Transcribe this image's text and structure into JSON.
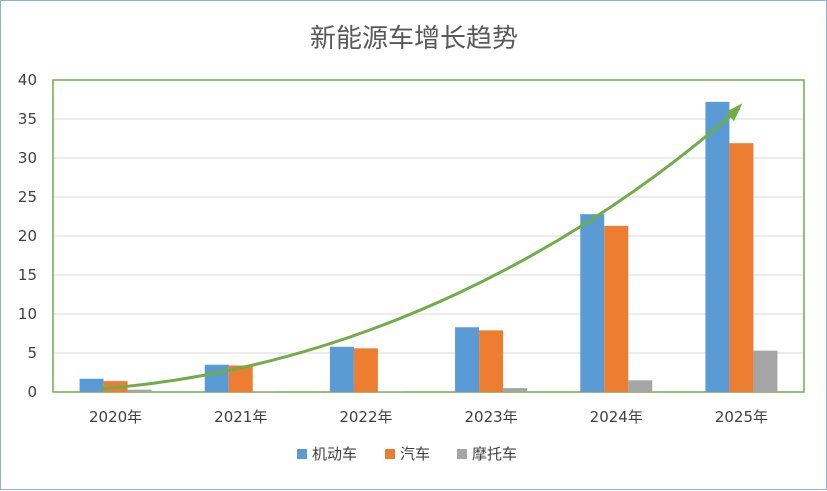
{
  "chart_data": {
    "type": "bar",
    "title": "新能源车增长趋势",
    "xlabel": "",
    "ylabel": "",
    "categories": [
      "2020年",
      "2021年",
      "2022年",
      "2023年",
      "2024年",
      "2025年"
    ],
    "series": [
      {
        "name": "机动车",
        "color": "#5b9bd5",
        "values": [
          1.7,
          3.5,
          5.8,
          8.3,
          22.8,
          37.2
        ]
      },
      {
        "name": "汽车",
        "color": "#ed7d31",
        "values": [
          1.4,
          3.4,
          5.6,
          7.9,
          21.3,
          31.9
        ]
      },
      {
        "name": "摩托车",
        "color": "#a5a5a5",
        "values": [
          0.3,
          0.05,
          0.05,
          0.5,
          1.5,
          5.3
        ]
      }
    ],
    "ylim": [
      0,
      40
    ],
    "yticks": [
      0,
      5,
      10,
      15,
      20,
      25,
      30,
      35,
      40
    ],
    "grid": true,
    "legend": "bottom",
    "trend_arrow": {
      "color": "#70ad47",
      "from_category": "2020年",
      "to_category": "2025年",
      "from_value": 1.7,
      "to_value": 36.0
    }
  }
}
